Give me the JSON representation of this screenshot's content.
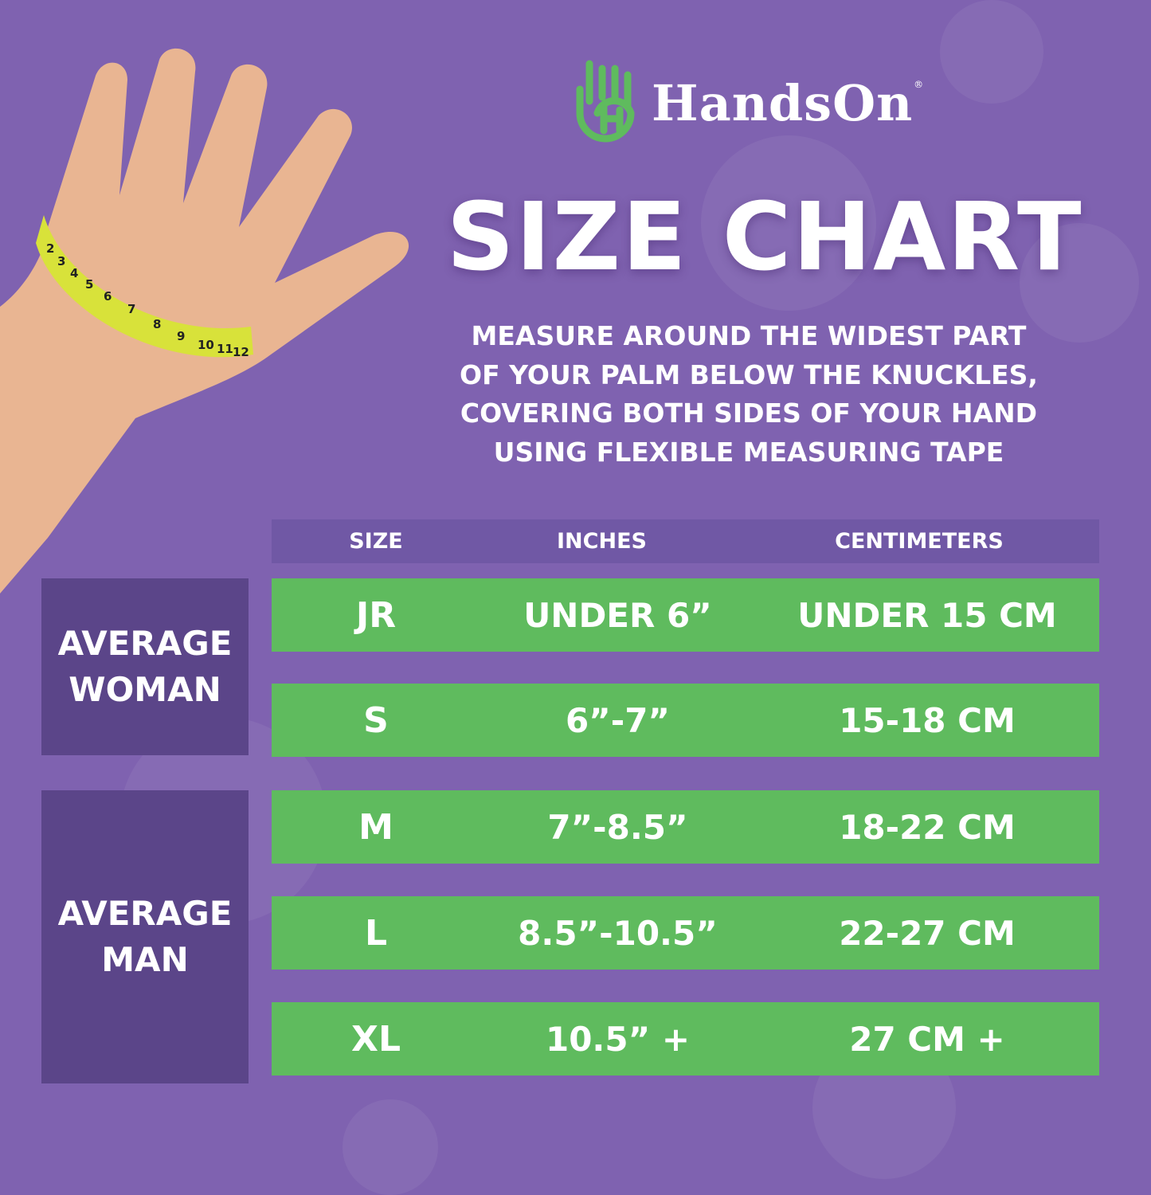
{
  "brand": {
    "name": "HandsOn",
    "registered": "®",
    "logo_color": "#5fbb5e"
  },
  "title": "SIZE CHART",
  "instructions": [
    "MEASURE AROUND THE WIDEST PART",
    "OF YOUR PALM BELOW THE KNUCKLES,",
    "COVERING BOTH SIDES OF YOUR HAND",
    "USING FLEXIBLE MEASURING TAPE"
  ],
  "table": {
    "headers": [
      "SIZE",
      "INCHES",
      "CENTIMETERS"
    ],
    "rows": [
      {
        "size": "JR",
        "inches": "UNDER 6”",
        "cm": "UNDER 15 CM"
      },
      {
        "size": "S",
        "inches": "6”-7”",
        "cm": "15-18 CM"
      },
      {
        "size": "M",
        "inches": "7”-8.5”",
        "cm": "18-22 CM"
      },
      {
        "size": "L",
        "inches": "8.5”-10.5”",
        "cm": "22-27 CM"
      },
      {
        "size": "XL",
        "inches": "10.5” +",
        "cm": "27 CM +"
      }
    ],
    "groups": [
      {
        "label_line1": "AVERAGE",
        "label_line2": "WOMAN"
      },
      {
        "label_line1": "AVERAGE",
        "label_line2": "MAN"
      }
    ]
  },
  "tape_numbers": [
    "2",
    "3",
    "4",
    "5",
    "6",
    "7",
    "8",
    "9",
    "10",
    "11",
    "12"
  ],
  "colors": {
    "background": "#7f62b0",
    "row_green": "#5fbb5e",
    "group_panel": "#5b4589",
    "header_bar": "#7058a5",
    "tape": "#d8e23a",
    "skin": "#e9b592"
  }
}
